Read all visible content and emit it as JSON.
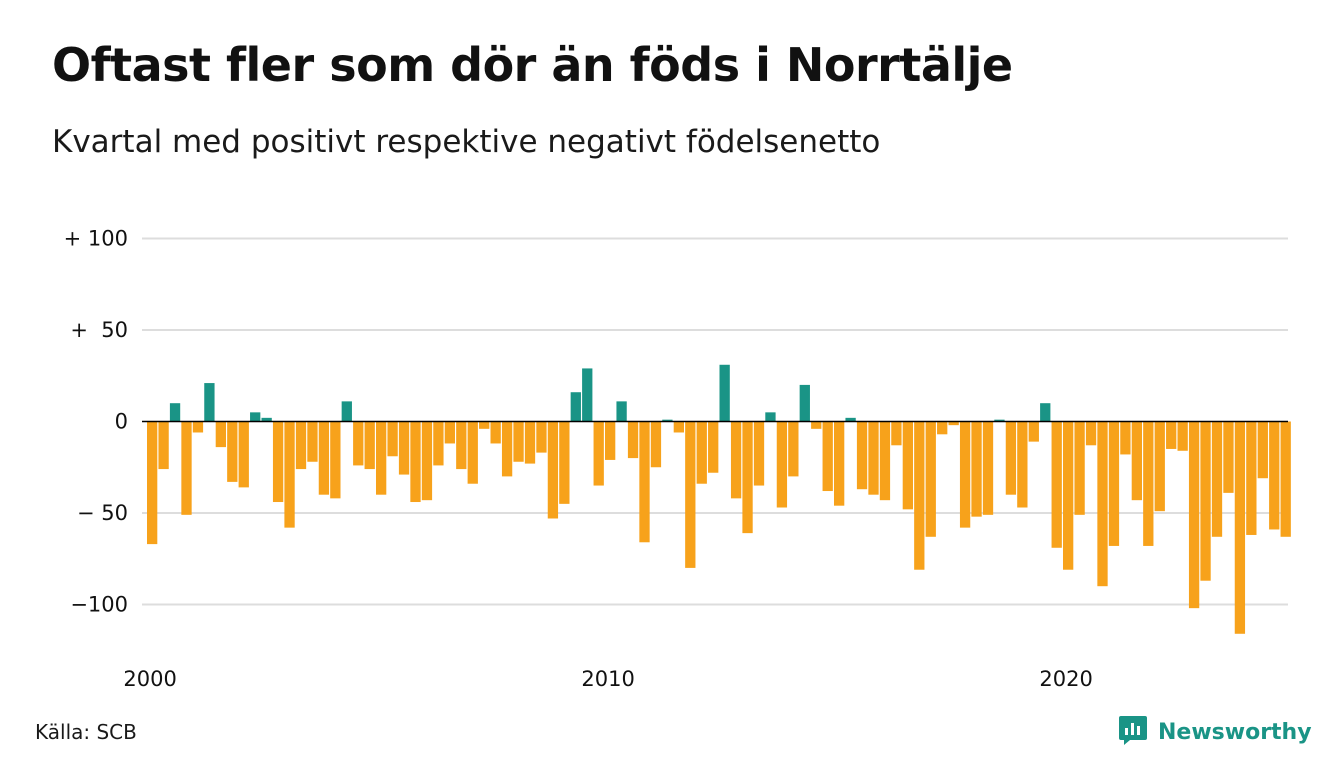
{
  "title": "Oftast fler som dör än föds i Norrtälje",
  "subtitle": "Kvartal med positivt respektive negativt födelsenetto",
  "source": "Källa: SCB",
  "brand": {
    "name": "Newsworthy",
    "icon": "newsworthy-logo-icon"
  },
  "colors": {
    "positive": "#1a9486",
    "negative": "#f7a21b",
    "grid": "#dddddd",
    "zero": "#000000"
  },
  "chart_data": {
    "type": "bar",
    "x": {
      "start_year": 2000,
      "start_quarter": 1,
      "ticks": [
        {
          "year": 2000,
          "label": "2000"
        },
        {
          "year": 2010,
          "label": "2010"
        },
        {
          "year": 2020,
          "label": "2020"
        }
      ]
    },
    "ylim": [
      -125,
      110
    ],
    "yticks": [
      {
        "value": 100,
        "label": "+ 100"
      },
      {
        "value": 50,
        "label": "+  50"
      },
      {
        "value": 0,
        "label": "0"
      },
      {
        "value": -50,
        "label": "− 50"
      },
      {
        "value": -100,
        "label": "−100"
      }
    ],
    "grid": true,
    "legend": "none",
    "values": [
      -67,
      -26,
      10,
      -51,
      -6,
      21,
      -14,
      -33,
      -36,
      5,
      2,
      -44,
      -58,
      -26,
      -22,
      -40,
      -42,
      11,
      -24,
      -26,
      -40,
      -19,
      -29,
      -44,
      -43,
      -24,
      -12,
      -26,
      -34,
      -4,
      -12,
      -30,
      -22,
      -23,
      -17,
      -53,
      -45,
      16,
      29,
      -35,
      -21,
      11,
      -20,
      -66,
      -25,
      1,
      -6,
      -80,
      -34,
      -28,
      31,
      -42,
      -61,
      -35,
      5,
      -47,
      -30,
      20,
      -4,
      -38,
      -46,
      2,
      -37,
      -40,
      -43,
      -13,
      -48,
      -81,
      -63,
      -7,
      -2,
      -58,
      -52,
      -51,
      1,
      -40,
      -47,
      -11,
      10,
      -69,
      -81,
      -51,
      -13,
      -90,
      -68,
      -18,
      -43,
      -68,
      -49,
      -15,
      -16,
      -102,
      -87,
      -63,
      -39,
      -116,
      -62,
      -31,
      -59,
      -63
    ]
  }
}
